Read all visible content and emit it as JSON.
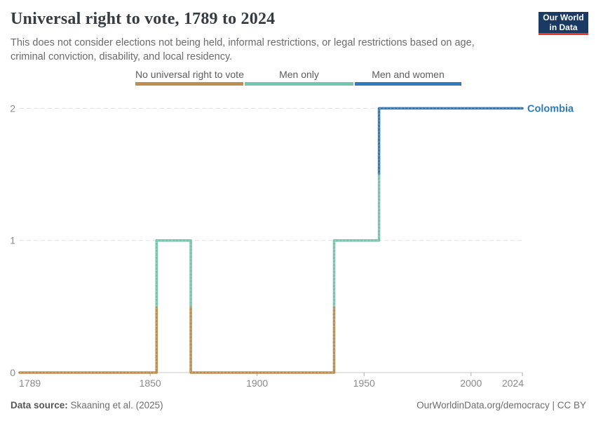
{
  "header": {
    "title": "Universal right to vote, 1789 to 2024",
    "subtitle": "This does not consider elections not being held, informal restrictions, or legal restrictions based on age, criminal conviction, disability, and local residency.",
    "logo": {
      "line1": "Our World",
      "line2": "in Data"
    }
  },
  "legend": {
    "items": [
      {
        "label": "No universal right to vote",
        "color": "#BD8E4F"
      },
      {
        "label": "Men only",
        "color": "#72C6AD"
      },
      {
        "label": "Men and women",
        "color": "#2F7BBB"
      }
    ]
  },
  "chart_data": {
    "type": "line",
    "subtype": "step",
    "title": "Universal right to vote, 1789 to 2024",
    "entity": "Colombia",
    "entity_color": "#3379BA",
    "xlabel": "",
    "ylabel": "",
    "x_axis": {
      "min": 1789,
      "max": 2024,
      "ticks": [
        1789,
        1850,
        1900,
        1950,
        2000,
        2024
      ]
    },
    "y_axis": {
      "min": 0,
      "max": 2,
      "ticks": [
        0,
        1,
        2
      ]
    },
    "gridlines": "dashed horizontal at y=1 and y=2, solid baseline at y=0",
    "legend_position": "top-center",
    "value_meanings": {
      "0": "No universal right to vote",
      "1": "Men only",
      "2": "Men and women"
    },
    "category_colors": {
      "No universal right to vote": "#BD8E4F",
      "Men only": "#72C6AD",
      "Men and women": "#2F7BBB"
    },
    "steps": [
      {
        "start_year": 1789,
        "end_year": 1853,
        "value": 0,
        "category": "No universal right to vote"
      },
      {
        "start_year": 1853,
        "end_year": 1869,
        "value": 1,
        "category": "Men only"
      },
      {
        "start_year": 1869,
        "end_year": 1936,
        "value": 0,
        "category": "No universal right to vote"
      },
      {
        "start_year": 1936,
        "end_year": 1957,
        "value": 1,
        "category": "Men only"
      },
      {
        "start_year": 1957,
        "end_year": 2024,
        "value": 2,
        "category": "Men and women"
      }
    ]
  },
  "footer": {
    "data_source_label": "Data source:",
    "data_source_value": " Skaaning et al. (2025)",
    "citation": "OurWorldinData.org/democracy | CC BY"
  },
  "colors": {
    "title_text": "#353b42",
    "subtitle_text": "#6b6b6b",
    "axis_text": "#8a8a8a",
    "gridline": "#e0e0e0",
    "axis_line": "#c8c8c8",
    "logo_bg": "#1a3a63",
    "logo_red": "#e23c33"
  }
}
